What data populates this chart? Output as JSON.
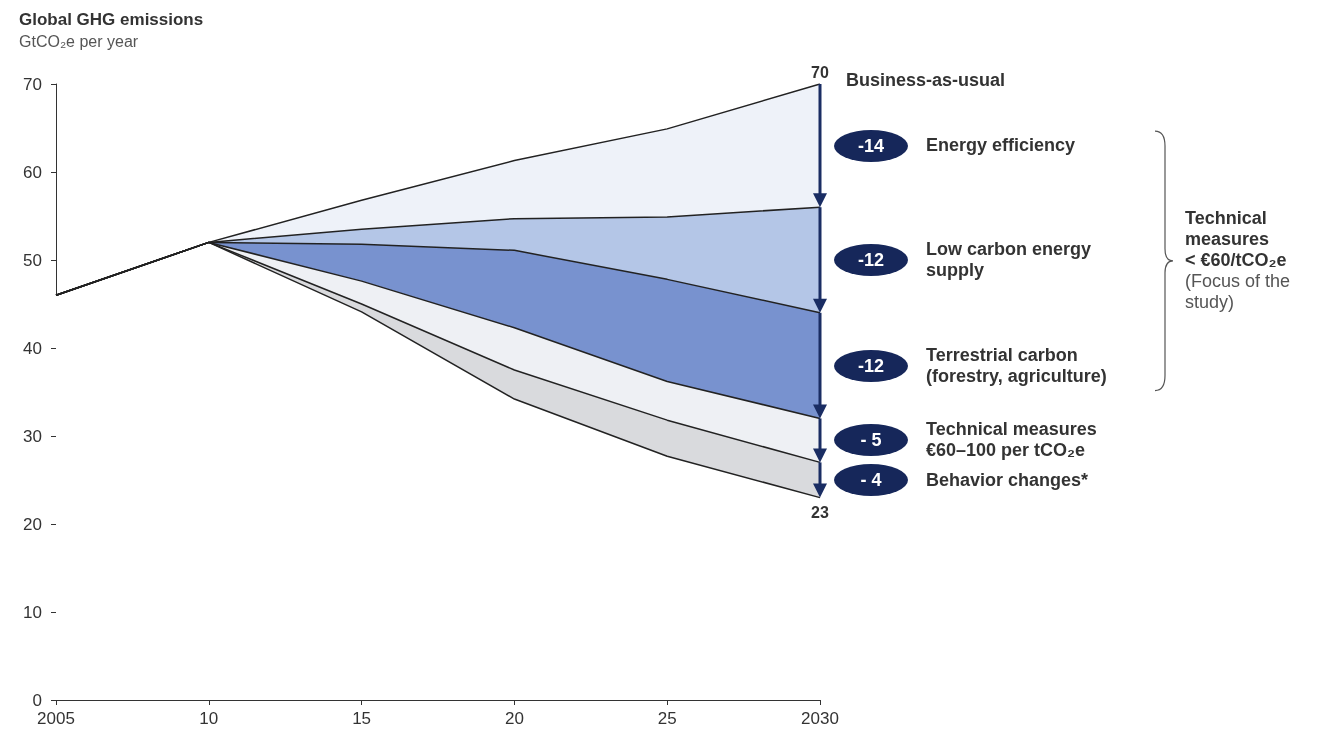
{
  "chart_data": {
    "type": "area",
    "title": "Global GHG emissions",
    "ylabel": "GtCO₂e per year",
    "categories": [
      "2005",
      "10",
      "15",
      "20",
      "25",
      "2030"
    ],
    "ylim": [
      0,
      70
    ],
    "yticks": [
      0,
      10,
      20,
      30,
      40,
      50,
      60,
      70
    ],
    "stacked": true,
    "series": [
      {
        "color": "#ffffff",
        "values": [
          46,
          52,
          44.1,
          34.2,
          27.7,
          23
        ]
      },
      {
        "name": "Behavior changes*",
        "color": "#d9dadd",
        "values": [
          0,
          0,
          0.9,
          3.3,
          4.1,
          4
        ]
      },
      {
        "name": "Technical measures €60–100 per tCO₂e",
        "color": "#eef0f4",
        "values": [
          0,
          0,
          2.6,
          4.8,
          4.4,
          5
        ]
      },
      {
        "name": "Terrestrial carbon (forestry, agriculture)",
        "color": "#7892cf",
        "values": [
          0,
          0,
          4.2,
          8.8,
          11.6,
          12
        ]
      },
      {
        "name": "Low carbon energy supply",
        "color": "#b4c6e7",
        "values": [
          0,
          0,
          1.7,
          3.6,
          7.1,
          12
        ]
      },
      {
        "name": "Energy efficiency",
        "color": "#eef2f9",
        "values": [
          0,
          0,
          3.3,
          6.6,
          10.0,
          14
        ]
      }
    ],
    "annotations": [
      {
        "text": "70",
        "x": "2030",
        "y": 70
      },
      {
        "text": "Business-as-usual",
        "x": "2030",
        "y": 70
      },
      {
        "text": "23",
        "x": "2030",
        "y": 23
      },
      {
        "text": "-14",
        "x": "2030",
        "y": 63
      },
      {
        "text": "-12",
        "x": "2030",
        "y": 50
      },
      {
        "text": "-12",
        "x": "2030",
        "y": 38
      },
      {
        "text": "- 5",
        "x": "2030",
        "y": 29.5
      },
      {
        "text": "- 4",
        "x": "2030",
        "y": 25
      },
      "Technical measures",
      "< €60/tCO₂e",
      "(Focus of the study)"
    ]
  }
}
